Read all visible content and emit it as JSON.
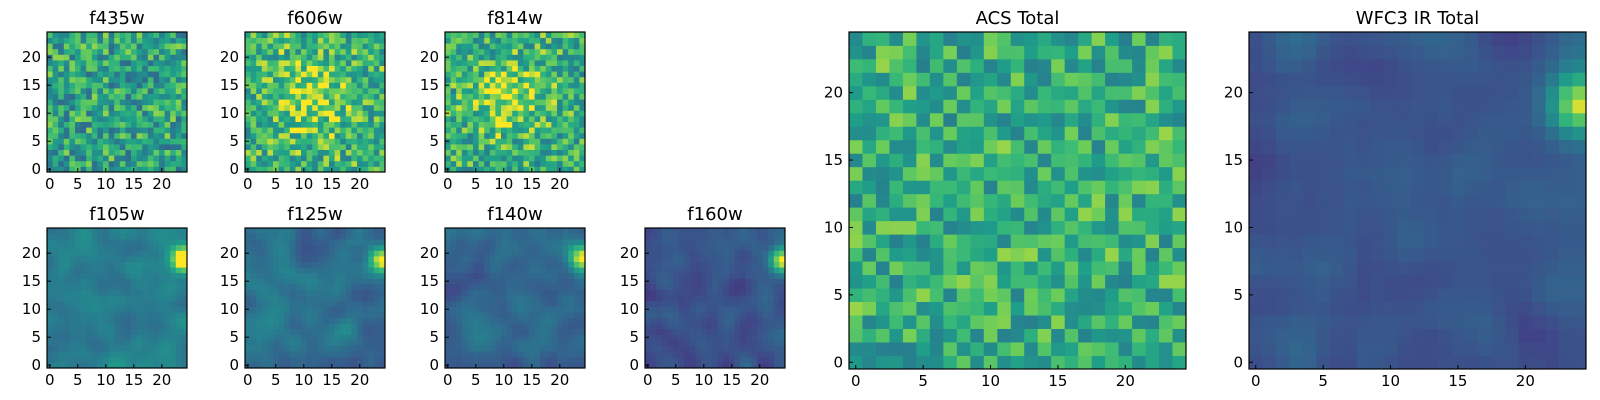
{
  "figure": {
    "colormap": "viridis",
    "colors": {
      "low": "#440154",
      "mid": "#21918c",
      "high": "#fde725",
      "axes_edge": "#000000",
      "background": "#ffffff"
    }
  },
  "chart_data": [
    {
      "type": "heatmap",
      "title": "f435w",
      "grid": [
        25,
        25
      ],
      "xlim": [
        0,
        24
      ],
      "ylim": [
        0,
        24
      ],
      "xticks": [
        0,
        5,
        10,
        15,
        20
      ],
      "yticks": [
        0,
        5,
        10,
        15,
        20
      ],
      "pattern": "noise",
      "mean_level": 0.65,
      "spread": 0.22,
      "seed": 11
    },
    {
      "type": "heatmap",
      "title": "f606w",
      "grid": [
        25,
        25
      ],
      "xlim": [
        0,
        24
      ],
      "ylim": [
        0,
        24
      ],
      "xticks": [
        0,
        5,
        10,
        15,
        20
      ],
      "yticks": [
        0,
        5,
        10,
        15,
        20
      ],
      "pattern": "noise_central_bright",
      "mean_level": 0.72,
      "spread": 0.2,
      "seed": 23
    },
    {
      "type": "heatmap",
      "title": "f814w",
      "grid": [
        25,
        25
      ],
      "xlim": [
        0,
        24
      ],
      "ylim": [
        0,
        24
      ],
      "xticks": [
        0,
        5,
        10,
        15,
        20
      ],
      "yticks": [
        0,
        5,
        10,
        15,
        20
      ],
      "pattern": "noise_central_bright",
      "mean_level": 0.7,
      "spread": 0.2,
      "seed": 37
    },
    {
      "type": "heatmap",
      "title": "f105w",
      "grid": [
        25,
        25
      ],
      "xlim": [
        0,
        24
      ],
      "ylim": [
        0,
        24
      ],
      "xticks": [
        0,
        5,
        10,
        15,
        20
      ],
      "yticks": [
        0,
        5,
        10,
        15,
        20
      ],
      "pattern": "smooth_corner_source",
      "mean_level": 0.48,
      "spread": 0.16,
      "seed": 41
    },
    {
      "type": "heatmap",
      "title": "f125w",
      "grid": [
        25,
        25
      ],
      "xlim": [
        0,
        24
      ],
      "ylim": [
        0,
        24
      ],
      "xticks": [
        0,
        5,
        10,
        15,
        20
      ],
      "yticks": [
        0,
        5,
        10,
        15,
        20
      ],
      "pattern": "smooth_corner_source",
      "mean_level": 0.42,
      "spread": 0.16,
      "seed": 53
    },
    {
      "type": "heatmap",
      "title": "f140w",
      "grid": [
        25,
        25
      ],
      "xlim": [
        0,
        24
      ],
      "ylim": [
        0,
        24
      ],
      "xticks": [
        0,
        5,
        10,
        15,
        20
      ],
      "yticks": [
        0,
        5,
        10,
        15,
        20
      ],
      "pattern": "smooth_corner_source",
      "mean_level": 0.38,
      "spread": 0.15,
      "seed": 67
    },
    {
      "type": "heatmap",
      "title": "f160w",
      "grid": [
        25,
        25
      ],
      "xlim": [
        0,
        24
      ],
      "ylim": [
        0,
        24
      ],
      "xticks": [
        0,
        5,
        10,
        15,
        20
      ],
      "yticks": [
        0,
        5,
        10,
        15,
        20
      ],
      "pattern": "smooth_corner_source",
      "mean_level": 0.3,
      "spread": 0.14,
      "seed": 79
    },
    {
      "type": "heatmap",
      "title": "ACS Total",
      "grid": [
        25,
        25
      ],
      "xlim": [
        0,
        24
      ],
      "ylim": [
        0,
        24
      ],
      "xticks": [
        0,
        5,
        10,
        15,
        20
      ],
      "yticks": [
        0,
        5,
        10,
        15,
        20
      ],
      "pattern": "noise",
      "mean_level": 0.7,
      "spread": 0.18,
      "seed": 97
    },
    {
      "type": "heatmap",
      "title": "WFC3 IR Total",
      "grid": [
        25,
        25
      ],
      "xlim": [
        0,
        24
      ],
      "ylim": [
        0,
        24
      ],
      "xticks": [
        0,
        5,
        10,
        15,
        20
      ],
      "yticks": [
        0,
        5,
        10,
        15,
        20
      ],
      "pattern": "smooth_corner_source",
      "mean_level": 0.3,
      "spread": 0.12,
      "seed": 113
    }
  ]
}
